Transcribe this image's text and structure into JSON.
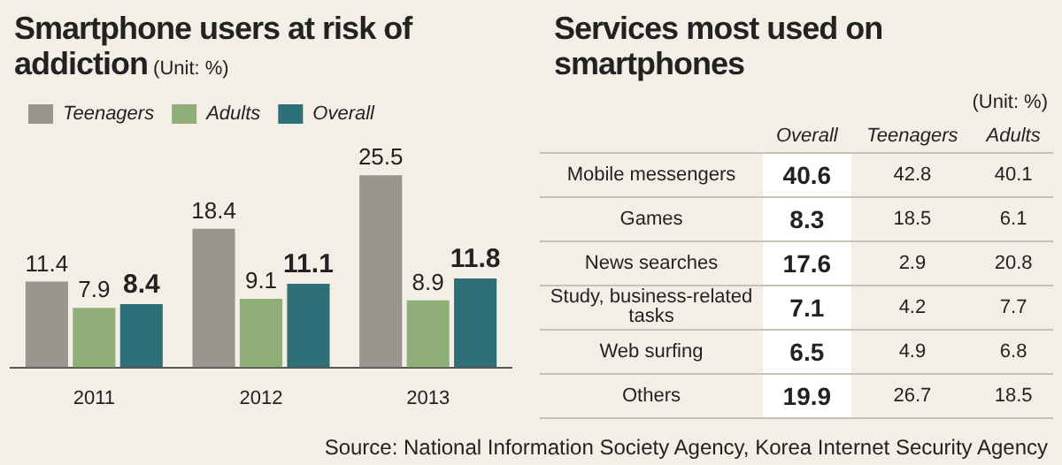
{
  "chart_data": [
    {
      "type": "bar",
      "title": "Smartphone users at risk of addiction",
      "subtitle": "(Unit: %)",
      "categories": [
        "2011",
        "2012",
        "2013"
      ],
      "series": [
        {
          "name": "Teenagers",
          "color": "#9a958f",
          "values": [
            11.4,
            18.4,
            25.5
          ]
        },
        {
          "name": "Adults",
          "color": "#8fae78",
          "values": [
            7.9,
            9.1,
            8.9
          ]
        },
        {
          "name": "Overall",
          "color": "#2f6f78",
          "values": [
            8.4,
            11.1,
            11.8
          ]
        }
      ],
      "data_labels": true,
      "legend": "top left",
      "annotations": [
        "Source: National Information Society Agency, Korea Internet Security Agency"
      ]
    },
    {
      "type": "heatmap",
      "title": "Services most used on smartphones",
      "subtitle": "(Unit: %)",
      "categories": [
        "Overall",
        "Teenagers",
        "Adults"
      ],
      "data_labels": true,
      "y_categories": [
        "Mobile messengers",
        "Games",
        "News searches",
        "Study, business-related tasks",
        "Web surfing",
        "Others"
      ],
      "cells": [
        [
          40.6,
          42.8,
          40.1
        ],
        [
          8.3,
          18.5,
          6.1
        ],
        [
          17.6,
          2.9,
          20.8
        ],
        [
          7.1,
          4.2,
          7.7
        ],
        [
          6.5,
          4.9,
          6.8
        ],
        [
          19.9,
          26.7,
          18.5
        ]
      ]
    }
  ]
}
